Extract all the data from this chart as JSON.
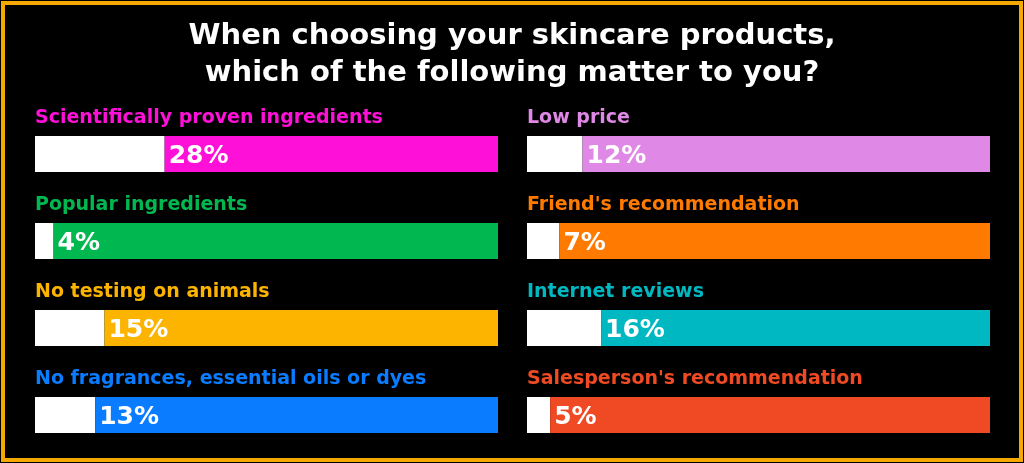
{
  "chart_data": [
    {
      "type": "bar",
      "orientation": "horizontal",
      "stacked": true,
      "title": "When choosing your skincare products,\nwhich of the following matter to you?",
      "categories": [
        "Scientifically proven ingredients",
        "Popular ingredients",
        "No testing on animals",
        "No fragrances, essential oils or dyes"
      ],
      "series": [
        {
          "color": "#ffffff",
          "values": [
            28,
            4,
            15,
            13
          ],
          "value_labels": [
            "28%",
            "4%",
            "15%",
            "13%"
          ]
        },
        {
          "colors": [
            "#ff10d8",
            "#00b84f",
            "#fcb400",
            "#0a7cff"
          ],
          "values": [
            72,
            96,
            85,
            87
          ]
        }
      ]
    },
    {
      "type": "bar",
      "orientation": "horizontal",
      "stacked": true,
      "categories": [
        "Low price",
        "Friend's recommendation",
        "Internet reviews",
        "Salesperson's recommendation"
      ],
      "series": [
        {
          "color": "#ffffff",
          "values": [
            12,
            7,
            16,
            5
          ],
          "value_labels": [
            "12%",
            "7%",
            "16%",
            "5%"
          ]
        },
        {
          "colors": [
            "#e088e6",
            "#ff7a00",
            "#00b8c2",
            "#ef4a24"
          ],
          "values": [
            88,
            93,
            84,
            95
          ]
        }
      ]
    }
  ]
}
